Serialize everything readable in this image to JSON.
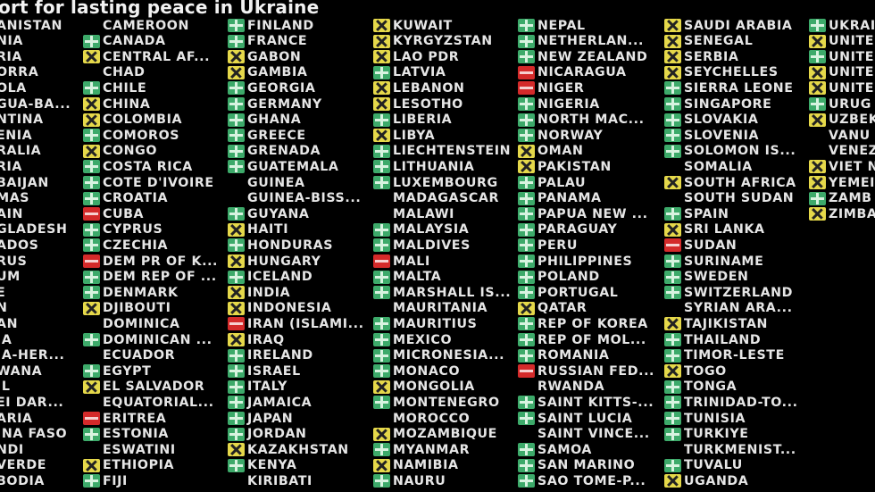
{
  "title": "ort for lasting peace in Ukraine",
  "vote_colors": {
    "Y": "#3daa6a",
    "N": "#d42a2a",
    "A": "#e5d84a"
  },
  "vote_legend": {
    "Y": "plus-icon (yes)",
    "N": "minus-icon (no)",
    "A": "x-icon (abstain)"
  },
  "columns": [
    {
      "items": [
        {
          "name": "ANISTAN",
          "vote": ""
        },
        {
          "name": "NIA",
          "vote": ""
        },
        {
          "name": "RIA",
          "vote": ""
        },
        {
          "name": "ORRA",
          "vote": ""
        },
        {
          "name": "OLA",
          "vote": ""
        },
        {
          "name": "GUA-BA...",
          "vote": ""
        },
        {
          "name": "NTINA",
          "vote": ""
        },
        {
          "name": "ENIA",
          "vote": ""
        },
        {
          "name": "RALIA",
          "vote": ""
        },
        {
          "name": "RIA",
          "vote": ""
        },
        {
          "name": "BAIJAN",
          "vote": ""
        },
        {
          "name": "MAS",
          "vote": ""
        },
        {
          "name": "AIN",
          "vote": ""
        },
        {
          "name": "GLADESH",
          "vote": ""
        },
        {
          "name": "ADOS",
          "vote": ""
        },
        {
          "name": "RUS",
          "vote": ""
        },
        {
          "name": "UM",
          "vote": ""
        },
        {
          "name": "E",
          "vote": ""
        },
        {
          "name": "N",
          "vote": ""
        },
        {
          "name": "AN",
          "vote": ""
        },
        {
          "name": "IA",
          "vote": ""
        },
        {
          "name": "IA-HER...",
          "vote": ""
        },
        {
          "name": "WANA",
          "vote": ""
        },
        {
          "name": "IL",
          "vote": ""
        },
        {
          "name": "EI DAR...",
          "vote": ""
        },
        {
          "name": "ARIA",
          "vote": ""
        },
        {
          "name": "INA FASO",
          "vote": ""
        },
        {
          "name": "NDI",
          "vote": ""
        },
        {
          "name": "VERDE",
          "vote": ""
        },
        {
          "name": "BODIA",
          "vote": ""
        }
      ]
    },
    {
      "items": [
        {
          "name": "CAMEROON",
          "vote": ""
        },
        {
          "name": "CANADA",
          "vote": "Y"
        },
        {
          "name": "CENTRAL AF...",
          "vote": "A"
        },
        {
          "name": "CHAD",
          "vote": ""
        },
        {
          "name": "CHILE",
          "vote": "Y"
        },
        {
          "name": "CHINA",
          "vote": "A"
        },
        {
          "name": "COLOMBIA",
          "vote": "A"
        },
        {
          "name": "COMOROS",
          "vote": "Y"
        },
        {
          "name": "CONGO",
          "vote": "A"
        },
        {
          "name": "COSTA RICA",
          "vote": "Y"
        },
        {
          "name": "COTE D'IVOIRE",
          "vote": "Y"
        },
        {
          "name": "CROATIA",
          "vote": "Y"
        },
        {
          "name": "CUBA",
          "vote": "N"
        },
        {
          "name": "CYPRUS",
          "vote": "Y"
        },
        {
          "name": "CZECHIA",
          "vote": "Y"
        },
        {
          "name": "DEM PR OF K...",
          "vote": "N"
        },
        {
          "name": "DEM REP OF ...",
          "vote": "Y"
        },
        {
          "name": "DENMARK",
          "vote": "Y"
        },
        {
          "name": "DJIBOUTI",
          "vote": "A"
        },
        {
          "name": "DOMINICA",
          "vote": ""
        },
        {
          "name": "DOMINICAN ...",
          "vote": "Y"
        },
        {
          "name": "ECUADOR",
          "vote": ""
        },
        {
          "name": "EGYPT",
          "vote": "Y"
        },
        {
          "name": "EL SALVADOR",
          "vote": "A"
        },
        {
          "name": "EQUATORIAL...",
          "vote": ""
        },
        {
          "name": "ERITREA",
          "vote": "N"
        },
        {
          "name": "ESTONIA",
          "vote": "Y"
        },
        {
          "name": "ESWATINI",
          "vote": ""
        },
        {
          "name": "ETHIOPIA",
          "vote": "A"
        },
        {
          "name": "FIJI",
          "vote": "Y"
        }
      ]
    },
    {
      "items": [
        {
          "name": "FINLAND",
          "vote": "Y"
        },
        {
          "name": "FRANCE",
          "vote": "Y"
        },
        {
          "name": "GABON",
          "vote": "A"
        },
        {
          "name": "GAMBIA",
          "vote": "A"
        },
        {
          "name": "GEORGIA",
          "vote": "Y"
        },
        {
          "name": "GERMANY",
          "vote": "Y"
        },
        {
          "name": "GHANA",
          "vote": "Y"
        },
        {
          "name": "GREECE",
          "vote": "Y"
        },
        {
          "name": "GRENADA",
          "vote": "Y"
        },
        {
          "name": "GUATEMALA",
          "vote": "Y"
        },
        {
          "name": "GUINEA",
          "vote": ""
        },
        {
          "name": "GUINEA-BISS...",
          "vote": ""
        },
        {
          "name": "GUYANA",
          "vote": "Y"
        },
        {
          "name": "HAITI",
          "vote": "A"
        },
        {
          "name": "HONDURAS",
          "vote": "Y"
        },
        {
          "name": "HUNGARY",
          "vote": "A"
        },
        {
          "name": "ICELAND",
          "vote": "Y"
        },
        {
          "name": "INDIA",
          "vote": "A"
        },
        {
          "name": "INDONESIA",
          "vote": "A"
        },
        {
          "name": "IRAN (ISLAMI...",
          "vote": "N"
        },
        {
          "name": "IRAQ",
          "vote": "A"
        },
        {
          "name": "IRELAND",
          "vote": "Y"
        },
        {
          "name": "ISRAEL",
          "vote": "Y"
        },
        {
          "name": "ITALY",
          "vote": "Y"
        },
        {
          "name": "JAMAICA",
          "vote": "Y"
        },
        {
          "name": "JAPAN",
          "vote": "Y"
        },
        {
          "name": "JORDAN",
          "vote": "Y"
        },
        {
          "name": "KAZAKHSTAN",
          "vote": "A"
        },
        {
          "name": "KENYA",
          "vote": "Y"
        },
        {
          "name": "KIRIBATI",
          "vote": ""
        }
      ]
    },
    {
      "items": [
        {
          "name": "KUWAIT",
          "vote": "A"
        },
        {
          "name": "KYRGYZSTAN",
          "vote": "A"
        },
        {
          "name": "LAO PDR",
          "vote": "A"
        },
        {
          "name": "LATVIA",
          "vote": "Y"
        },
        {
          "name": "LEBANON",
          "vote": "A"
        },
        {
          "name": "LESOTHO",
          "vote": "A"
        },
        {
          "name": "LIBERIA",
          "vote": "Y"
        },
        {
          "name": "LIBYA",
          "vote": "A"
        },
        {
          "name": "LIECHTENSTEIN",
          "vote": "Y"
        },
        {
          "name": "LITHUANIA",
          "vote": "Y"
        },
        {
          "name": "LUXEMBOURG",
          "vote": "Y"
        },
        {
          "name": "MADAGASCAR",
          "vote": ""
        },
        {
          "name": "MALAWI",
          "vote": ""
        },
        {
          "name": "MALAYSIA",
          "vote": "Y"
        },
        {
          "name": "MALDIVES",
          "vote": "Y"
        },
        {
          "name": "MALI",
          "vote": "N"
        },
        {
          "name": "MALTA",
          "vote": "Y"
        },
        {
          "name": "MARSHALL IS...",
          "vote": "Y"
        },
        {
          "name": "MAURITANIA",
          "vote": ""
        },
        {
          "name": "MAURITIUS",
          "vote": "Y"
        },
        {
          "name": "MEXICO",
          "vote": "Y"
        },
        {
          "name": "MICRONESIA...",
          "vote": "Y"
        },
        {
          "name": "MONACO",
          "vote": "Y"
        },
        {
          "name": "MONGOLIA",
          "vote": "A"
        },
        {
          "name": "MONTENEGRO",
          "vote": "Y"
        },
        {
          "name": "MOROCCO",
          "vote": ""
        },
        {
          "name": "MOZAMBIQUE",
          "vote": "A"
        },
        {
          "name": "MYANMAR",
          "vote": "Y"
        },
        {
          "name": "NAMIBIA",
          "vote": "A"
        },
        {
          "name": "NAURU",
          "vote": "Y"
        }
      ]
    },
    {
      "items": [
        {
          "name": "NEPAL",
          "vote": "Y"
        },
        {
          "name": "NETHERLAN...",
          "vote": "Y"
        },
        {
          "name": "NEW ZEALAND",
          "vote": "Y"
        },
        {
          "name": "NICARAGUA",
          "vote": "N"
        },
        {
          "name": "NIGER",
          "vote": "N"
        },
        {
          "name": "NIGERIA",
          "vote": "Y"
        },
        {
          "name": "NORTH MAC...",
          "vote": "Y"
        },
        {
          "name": "NORWAY",
          "vote": "Y"
        },
        {
          "name": "OMAN",
          "vote": "A"
        },
        {
          "name": "PAKISTAN",
          "vote": "A"
        },
        {
          "name": "PALAU",
          "vote": "Y"
        },
        {
          "name": "PANAMA",
          "vote": "Y"
        },
        {
          "name": "PAPUA NEW ...",
          "vote": "Y"
        },
        {
          "name": "PARAGUAY",
          "vote": "Y"
        },
        {
          "name": "PERU",
          "vote": "Y"
        },
        {
          "name": "PHILIPPINES",
          "vote": "Y"
        },
        {
          "name": "POLAND",
          "vote": "Y"
        },
        {
          "name": "PORTUGAL",
          "vote": "Y"
        },
        {
          "name": "QATAR",
          "vote": "A"
        },
        {
          "name": "REP OF KOREA",
          "vote": "Y"
        },
        {
          "name": "REP OF MOL...",
          "vote": "Y"
        },
        {
          "name": "ROMANIA",
          "vote": "Y"
        },
        {
          "name": "RUSSIAN FED...",
          "vote": "N"
        },
        {
          "name": "RWANDA",
          "vote": ""
        },
        {
          "name": "SAINT KITTS-...",
          "vote": "Y"
        },
        {
          "name": "SAINT LUCIA",
          "vote": "Y"
        },
        {
          "name": "SAINT VINCE...",
          "vote": ""
        },
        {
          "name": "SAMOA",
          "vote": "Y"
        },
        {
          "name": "SAN MARINO",
          "vote": "Y"
        },
        {
          "name": "SAO TOME-P...",
          "vote": "Y"
        }
      ]
    },
    {
      "items": [
        {
          "name": "SAUDI ARABIA",
          "vote": "A"
        },
        {
          "name": "SENEGAL",
          "vote": "A"
        },
        {
          "name": "SERBIA",
          "vote": "A"
        },
        {
          "name": "SEYCHELLES",
          "vote": "A"
        },
        {
          "name": "SIERRA LEONE",
          "vote": "Y"
        },
        {
          "name": "SINGAPORE",
          "vote": "Y"
        },
        {
          "name": "SLOVAKIA",
          "vote": "Y"
        },
        {
          "name": "SLOVENIA",
          "vote": "Y"
        },
        {
          "name": "SOLOMON IS...",
          "vote": "Y"
        },
        {
          "name": "SOMALIA",
          "vote": ""
        },
        {
          "name": "SOUTH AFRICA",
          "vote": "A"
        },
        {
          "name": "SOUTH SUDAN",
          "vote": ""
        },
        {
          "name": "SPAIN",
          "vote": "Y"
        },
        {
          "name": "SRI LANKA",
          "vote": "A"
        },
        {
          "name": "SUDAN",
          "vote": "N"
        },
        {
          "name": "SURINAME",
          "vote": "Y"
        },
        {
          "name": "SWEDEN",
          "vote": "Y"
        },
        {
          "name": "SWITZERLAND",
          "vote": "Y"
        },
        {
          "name": "SYRIAN ARA...",
          "vote": ""
        },
        {
          "name": "TAJIKISTAN",
          "vote": "A"
        },
        {
          "name": "THAILAND",
          "vote": "Y"
        },
        {
          "name": "TIMOR-LESTE",
          "vote": "Y"
        },
        {
          "name": "TOGO",
          "vote": "A"
        },
        {
          "name": "TONGA",
          "vote": "Y"
        },
        {
          "name": "TRINIDAD-TO...",
          "vote": "Y"
        },
        {
          "name": "TUNISIA",
          "vote": "Y"
        },
        {
          "name": "TURKIYE",
          "vote": "Y"
        },
        {
          "name": "TURKMENIST...",
          "vote": ""
        },
        {
          "name": "TUVALU",
          "vote": "Y"
        },
        {
          "name": "UGANDA",
          "vote": "A"
        }
      ]
    },
    {
      "items": [
        {
          "name": "UKRAI",
          "vote": "Y"
        },
        {
          "name": "UNITE",
          "vote": "A"
        },
        {
          "name": "UNITE",
          "vote": "Y"
        },
        {
          "name": "UNITE",
          "vote": "A"
        },
        {
          "name": "UNITE",
          "vote": "A"
        },
        {
          "name": "URUG",
          "vote": "Y"
        },
        {
          "name": "UZBEK",
          "vote": "A"
        },
        {
          "name": "VANU",
          "vote": ""
        },
        {
          "name": "VENEZ",
          "vote": ""
        },
        {
          "name": "VIET N",
          "vote": "A"
        },
        {
          "name": "YEMEI",
          "vote": "A"
        },
        {
          "name": "ZAMB",
          "vote": "Y"
        },
        {
          "name": "ZIMBA",
          "vote": "A"
        }
      ]
    }
  ]
}
